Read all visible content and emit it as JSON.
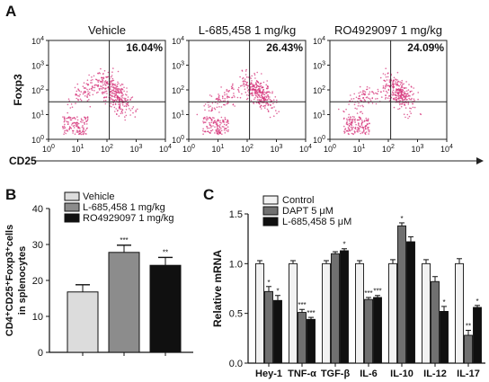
{
  "panels": {
    "a": "A",
    "b": "B",
    "c": "C"
  },
  "flow": {
    "ylabel": "Foxp3",
    "xlabel": "CD25",
    "ticks": [
      {
        "b": "10",
        "e": "0"
      },
      {
        "b": "10",
        "e": "1"
      },
      {
        "b": "10",
        "e": "2"
      },
      {
        "b": "10",
        "e": "3"
      },
      {
        "b": "10",
        "e": "4"
      }
    ],
    "plots": [
      {
        "title": "Vehicle",
        "pct": "16.04%"
      },
      {
        "title": "L-685,458 1 mg/kg",
        "pct": "26.43%"
      },
      {
        "title": "RO4929097 1 mg/kg",
        "pct": "24.09%"
      }
    ]
  },
  "chart_data": [
    {
      "type": "bar",
      "panel": "B",
      "title": "",
      "ylabel_lines": [
        "CD4⁺CD25⁺Foxp3⁺cells",
        "in splenocytes"
      ],
      "ylim": [
        0,
        40
      ],
      "yticks": [
        "0",
        "10",
        "20",
        "30",
        "40"
      ],
      "legend_position": "top-left",
      "series": [
        {
          "name": "Vehicle",
          "values": [
            16.8
          ],
          "error": [
            2.0
          ],
          "sig": "",
          "color": "#dcdcdc"
        },
        {
          "name": "L-685,458 1 mg/kg",
          "values": [
            27.8
          ],
          "error": [
            2.0
          ],
          "sig": "***",
          "color": "#8c8c8c"
        },
        {
          "name": "RO4929097 1 mg/kg",
          "values": [
            24.2
          ],
          "error": [
            2.2
          ],
          "sig": "**",
          "color": "#101010"
        }
      ]
    },
    {
      "type": "bar",
      "panel": "C",
      "title": "",
      "ylabel": "Relative mRNA",
      "ylim": [
        0,
        1.5
      ],
      "yticks": [
        "0.0",
        "0.5",
        "1.0",
        "1.5"
      ],
      "legend_position": "top-left",
      "categories": [
        "Hey-1",
        "TNF-α",
        "TGF-β",
        "IL-6",
        "IL-10",
        "IL-12",
        "IL-17"
      ],
      "series": [
        {
          "name": "Control",
          "color": "#f2f2f2",
          "values": [
            1.0,
            1.0,
            1.0,
            1.0,
            1.0,
            1.0,
            1.0
          ],
          "error": [
            0.03,
            0.03,
            0.03,
            0.03,
            0.04,
            0.04,
            0.05
          ],
          "sig": [
            "",
            "",
            "",
            "",
            "",
            "",
            ""
          ]
        },
        {
          "name": "DAPT 5 μM",
          "color": "#707070",
          "values": [
            0.72,
            0.51,
            1.1,
            0.64,
            1.38,
            0.82,
            0.28
          ],
          "error": [
            0.05,
            0.03,
            0.02,
            0.02,
            0.03,
            0.05,
            0.05
          ],
          "sig": [
            "*",
            "***",
            "",
            "***",
            "*",
            "",
            "**"
          ]
        },
        {
          "name": "L-685,458 5 μM",
          "color": "#101010",
          "values": [
            0.63,
            0.44,
            1.13,
            0.66,
            1.22,
            0.52,
            0.56
          ],
          "error": [
            0.05,
            0.02,
            0.02,
            0.02,
            0.05,
            0.05,
            0.02
          ],
          "sig": [
            "*",
            "***",
            "*",
            "***",
            "",
            "*",
            "*"
          ]
        }
      ]
    }
  ]
}
